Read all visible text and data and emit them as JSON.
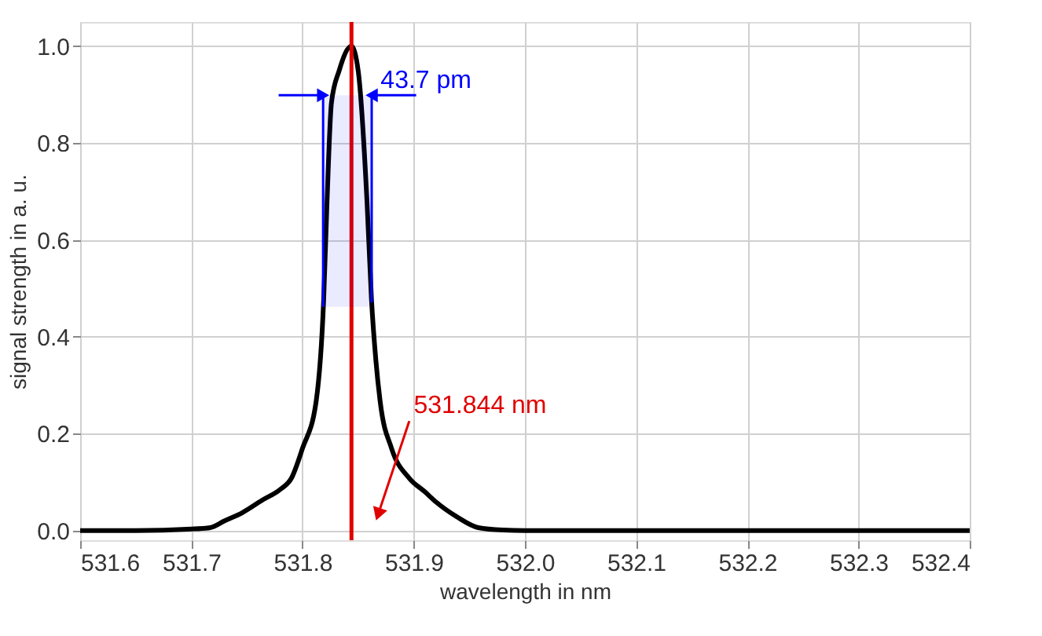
{
  "chart_data": {
    "type": "line",
    "xlabel": "wavelength in nm",
    "ylabel": "signal strength in a. u.",
    "xlim": [
      531.6,
      532.4
    ],
    "xticks": [
      {
        "value": 531.6,
        "label": "531.6"
      },
      {
        "value": 531.7,
        "label": "531.7"
      },
      {
        "value": 531.8,
        "label": "531.8"
      },
      {
        "value": 531.9,
        "label": "531.9"
      },
      {
        "value": 532.0,
        "label": "532.0"
      },
      {
        "value": 532.1,
        "label": "532.1"
      },
      {
        "value": 532.2,
        "label": "532.2"
      },
      {
        "value": 532.3,
        "label": "532.3"
      },
      {
        "value": 532.4,
        "label": "532.4"
      }
    ],
    "ylim": [
      -0.02,
      1.05
    ],
    "yticks": [
      {
        "value": 0,
        "label": "0.0"
      },
      {
        "value": 0.2,
        "label": "0.2"
      },
      {
        "value": 0.4,
        "label": "0.4"
      },
      {
        "value": 0.6,
        "label": "0.6"
      },
      {
        "value": 0.8,
        "label": "0.8"
      },
      {
        "value": 1,
        "label": "1.0"
      }
    ],
    "grid": true,
    "line_style": "solid",
    "series": [
      {
        "color": "#000000",
        "x": [
          531.6,
          531.65,
          531.7,
          531.717,
          531.73,
          531.746,
          531.764,
          531.78,
          531.79,
          531.8,
          531.812,
          531.819,
          531.822,
          531.826,
          531.833,
          531.844,
          531.85,
          531.858,
          531.862,
          531.866,
          531.87,
          531.88,
          531.896,
          531.91,
          531.92,
          531.939,
          531.958,
          531.98,
          532.0,
          532.1,
          532.2,
          532.3,
          532.4
        ],
        "values": [
          0.0,
          0.0,
          0.003,
          0.006,
          0.02,
          0.037,
          0.063,
          0.085,
          0.108,
          0.17,
          0.263,
          0.477,
          0.678,
          0.883,
          0.95,
          1.0,
          0.95,
          0.678,
          0.477,
          0.35,
          0.263,
          0.17,
          0.108,
          0.08,
          0.059,
          0.028,
          0.006,
          0.001,
          0.0,
          0.0,
          0.0,
          0.0,
          0.0
        ]
      }
    ],
    "ref_lines": [
      {
        "axis": "x",
        "value": 531.844,
        "label": "531.844 nm",
        "color": "#e00000"
      }
    ],
    "bands": [
      {
        "axis": "x",
        "from": 531.8185,
        "to": 531.8622,
        "label": "43.7 pm",
        "color": "#0000ff"
      }
    ]
  }
}
